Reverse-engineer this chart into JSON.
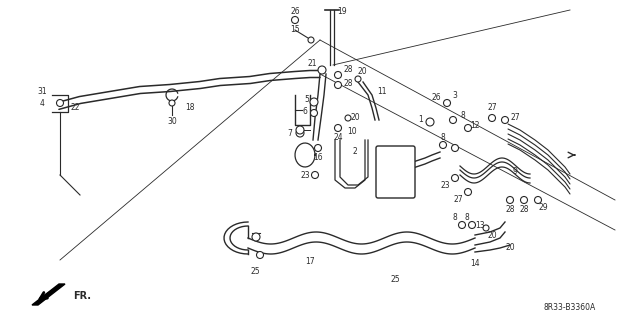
{
  "bg_color": "#ffffff",
  "line_color": "#2a2a2a",
  "diagram_code": "8R33-B3360A",
  "figsize": [
    6.4,
    3.19
  ],
  "dpi": 100
}
